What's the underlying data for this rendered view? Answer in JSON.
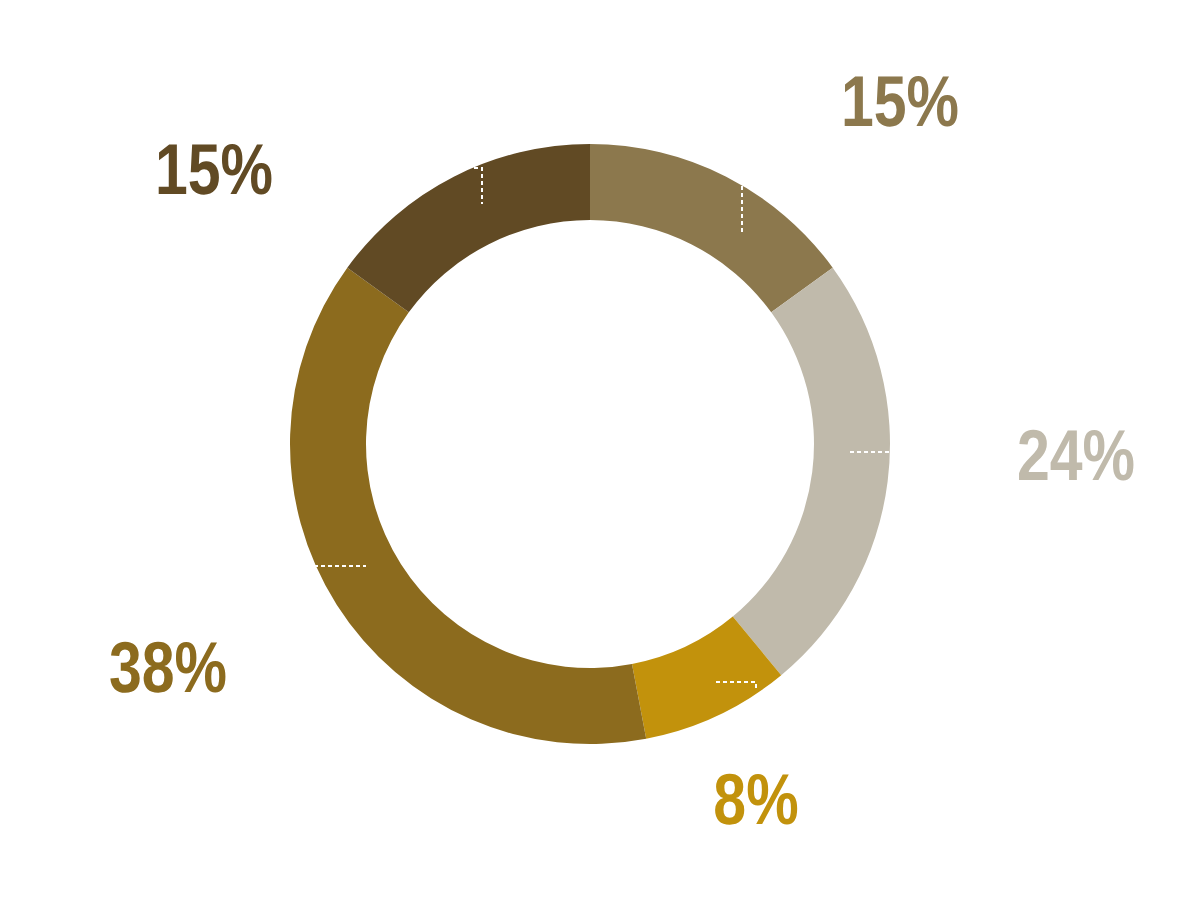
{
  "chart_data": {
    "type": "donut",
    "categories": [
      null,
      null,
      null,
      null,
      null
    ],
    "values": [
      15,
      24,
      8,
      38,
      15
    ],
    "colors": [
      "#8c784d",
      "#c0baab",
      "#c2920c",
      "#8c6b1e",
      "#614a24"
    ],
    "value_labels": [
      "15%",
      "24%",
      "8%",
      "38%",
      "15%"
    ]
  }
}
